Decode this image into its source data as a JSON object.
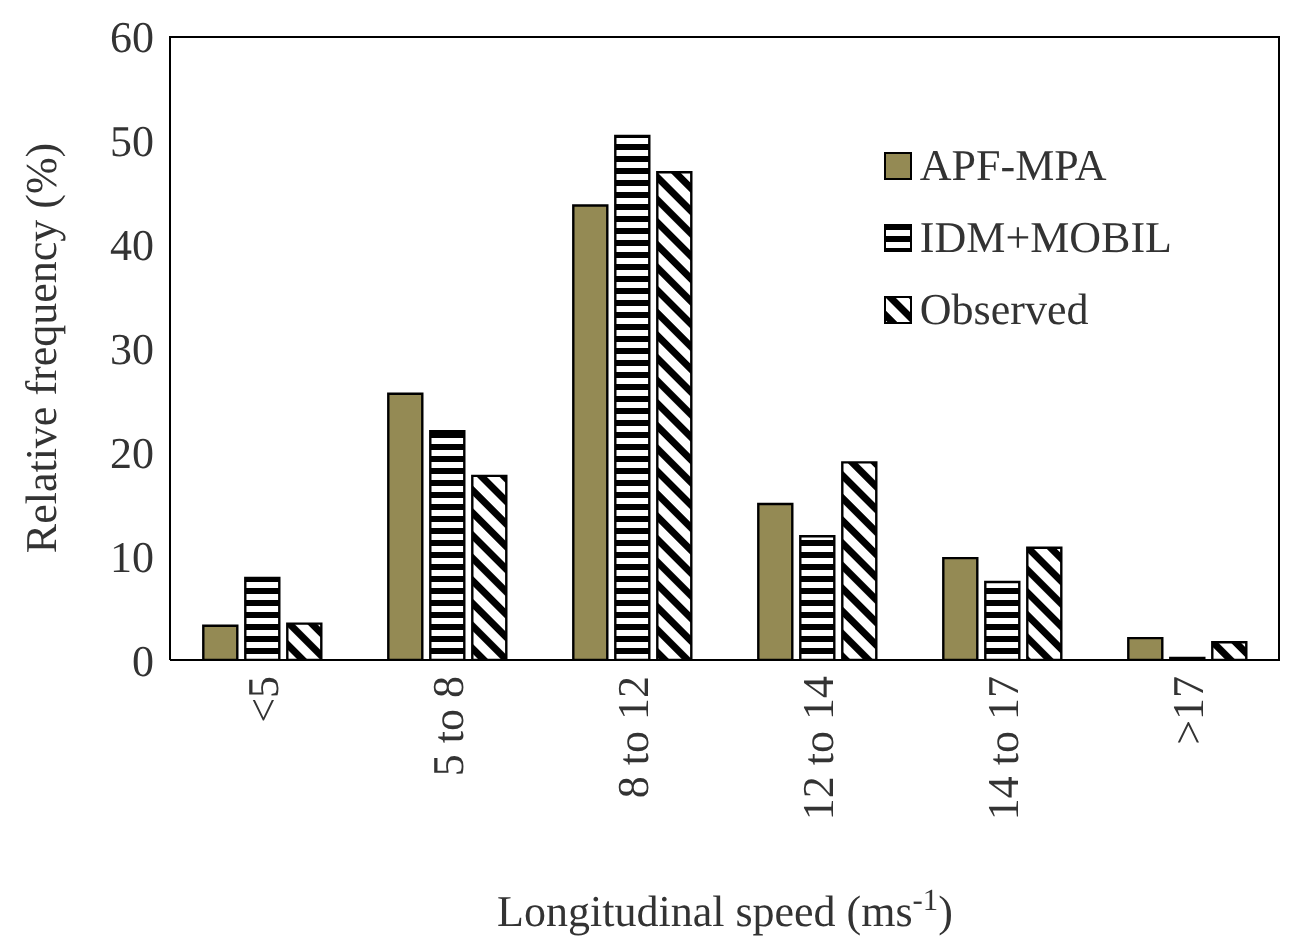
{
  "chart_data": {
    "type": "bar",
    "xlabel": "Longitudinal speed (ms$^{-1}$)",
    "ylabel": "Relative frequency (%)",
    "categories": [
      "<5",
      "5 to 8",
      "8 to 12",
      "12 to 14",
      "14 to 17",
      ">17"
    ],
    "series": [
      {
        "name": "APF-MPA",
        "color": "#948a54",
        "values": [
          3.3,
          25.6,
          43.7,
          15,
          9.8,
          2.1
        ]
      },
      {
        "name": "IDM+MOBIL",
        "color": "#000000",
        "values": [
          7.9,
          22,
          50.4,
          11.9,
          7.5,
          0.2
        ]
      },
      {
        "name": "Observed",
        "color": "#000000",
        "values": [
          3.5,
          17.7,
          46.9,
          19,
          10.8,
          1.7
        ]
      }
    ],
    "ylim": [
      0,
      60
    ],
    "yticks": [
      0,
      10,
      20,
      30,
      40,
      50,
      60
    ],
    "grid": false,
    "legend": "top right"
  }
}
